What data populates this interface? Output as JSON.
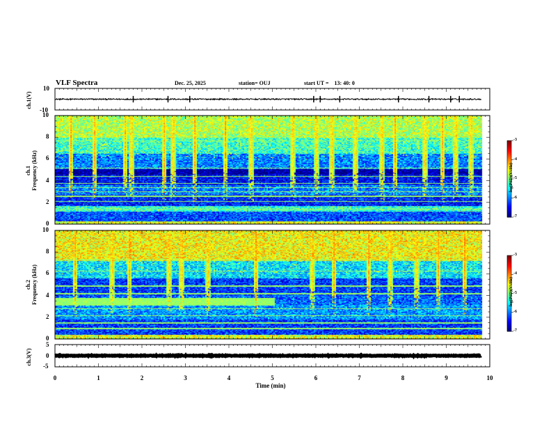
{
  "header": {
    "title": "VLF Spectra",
    "date": "Dec. 25, 2025",
    "station": "station= OUJ",
    "start_label": "start UT =",
    "start_time": "13: 40: 0"
  },
  "panels": {
    "ch1_wave": {
      "ylabel": "ch.1(V)",
      "ymax": "10",
      "ymin": "-10"
    },
    "ch1_spec": {
      "ylabel_line1": "ch.1",
      "ylabel_line2": "Frequency (kHz)"
    },
    "ch2_spec": {
      "ylabel_line1": "ch.2",
      "ylabel_line2": "Frequency (kHz)"
    },
    "ch3_wave": {
      "ylabel": "ch.3(V)",
      "ymax": "5",
      "ymid": "0",
      "ymin": "-5"
    }
  },
  "freq_ticks": [
    "0",
    "2",
    "4",
    "6",
    "8",
    "10"
  ],
  "x_ticks": [
    "0",
    "1",
    "2",
    "3",
    "4",
    "5",
    "6",
    "7",
    "8",
    "9",
    "10"
  ],
  "xlabel": "Time (min)",
  "colorbar": {
    "ticks": [
      "-3",
      "-4",
      "-5",
      "-6",
      "-7"
    ],
    "label": "log(PSD)(V²/Hz)"
  },
  "chart_data": [
    {
      "type": "line",
      "name": "ch.1 waveform",
      "ylabel": "ch.1(V)",
      "xlim": [
        0,
        10
      ],
      "ylim": [
        -10,
        10
      ],
      "baseline_value": 0,
      "noise_amplitude": 1.2,
      "spike_times_min": [
        1.8,
        2.6,
        3.1,
        5.95,
        6.1,
        6.55,
        7.9,
        8.6,
        9.1,
        9.3
      ],
      "data_end_min": 9.8
    },
    {
      "type": "heatmap",
      "name": "ch.1 spectrogram",
      "xlabel": "Time (min)",
      "ylabel": "Frequency (kHz)",
      "xlim": [
        0,
        10
      ],
      "ylim": [
        0,
        10
      ],
      "zlim": [
        -7,
        -3
      ],
      "zlabel": "log(PSD)(V²/Hz)",
      "data_end_min": 9.8,
      "bands": [
        {
          "f_low": 0,
          "f_high": 0.3,
          "level": -4.6
        },
        {
          "f_low": 0.3,
          "f_high": 1.2,
          "level": -6.2
        },
        {
          "f_low": 1.2,
          "f_high": 1.7,
          "level": -5.3
        },
        {
          "f_low": 1.7,
          "f_high": 2.7,
          "level": -6.4
        },
        {
          "f_low": 2.7,
          "f_high": 3.6,
          "level": -6.0
        },
        {
          "f_low": 3.6,
          "f_high": 4.6,
          "level": -6.5
        },
        {
          "f_low": 4.6,
          "f_high": 5.1,
          "level": -6.9
        },
        {
          "f_low": 5.1,
          "f_high": 6.5,
          "level": -6.0
        },
        {
          "f_low": 6.5,
          "f_high": 8.0,
          "level": -5.3
        },
        {
          "f_low": 8.0,
          "f_high": 10.0,
          "level": -4.8
        }
      ],
      "lines_khz": [
        1.4,
        2.1,
        2.6,
        3.0,
        3.4,
        3.8,
        4.4,
        5.2,
        7.7
      ],
      "event_times_min": [
        0.35,
        0.9,
        1.6,
        1.75,
        2.5,
        2.7,
        3.2,
        3.9,
        4.5,
        5.45,
        6.0,
        6.35,
        6.9,
        7.5,
        7.8,
        8.5,
        8.9,
        9.2,
        9.55
      ]
    },
    {
      "type": "heatmap",
      "name": "ch.2 spectrogram",
      "xlabel": "Time (min)",
      "ylabel": "Frequency (kHz)",
      "xlim": [
        0,
        10
      ],
      "ylim": [
        0,
        10
      ],
      "zlim": [
        -7,
        -3
      ],
      "zlabel": "log(PSD)(V²/Hz)",
      "data_end_min": 9.8,
      "bands": [
        {
          "f_low": 0,
          "f_high": 0.4,
          "level": -4.6
        },
        {
          "f_low": 0.4,
          "f_high": 1.8,
          "level": -6.3
        },
        {
          "f_low": 1.8,
          "f_high": 3.2,
          "level": -5.9
        },
        {
          "f_low": 3.2,
          "f_high": 4.0,
          "level": -6.1
        },
        {
          "f_low": 4.0,
          "f_high": 5.6,
          "level": -6.3
        },
        {
          "f_low": 5.6,
          "f_high": 7.2,
          "level": -5.6
        },
        {
          "f_low": 7.2,
          "f_high": 10.0,
          "level": -4.5
        }
      ],
      "intense_band": {
        "t_start_min": 0,
        "t_end_min": 5.05,
        "f_low_khz": 3.1,
        "f_high_khz": 3.8,
        "level": -4.9
      },
      "lines_khz": [
        1.0,
        1.5,
        2.2,
        2.8,
        4.2,
        4.9,
        6.3,
        7.3
      ],
      "event_times_min": [
        0.45,
        1.3,
        1.7,
        2.6,
        2.9,
        3.5,
        4.6,
        5.9,
        6.4,
        7.2,
        7.7,
        8.3,
        8.8,
        9.4
      ]
    },
    {
      "type": "line",
      "name": "ch.3 waveform",
      "ylabel": "ch.3(V)",
      "xlim": [
        0,
        10
      ],
      "ylim": [
        -5,
        5
      ],
      "baseline_value": 0,
      "noise_amplitude": 0.3,
      "spike_times_min": [],
      "data_end_min": 9.8
    }
  ]
}
